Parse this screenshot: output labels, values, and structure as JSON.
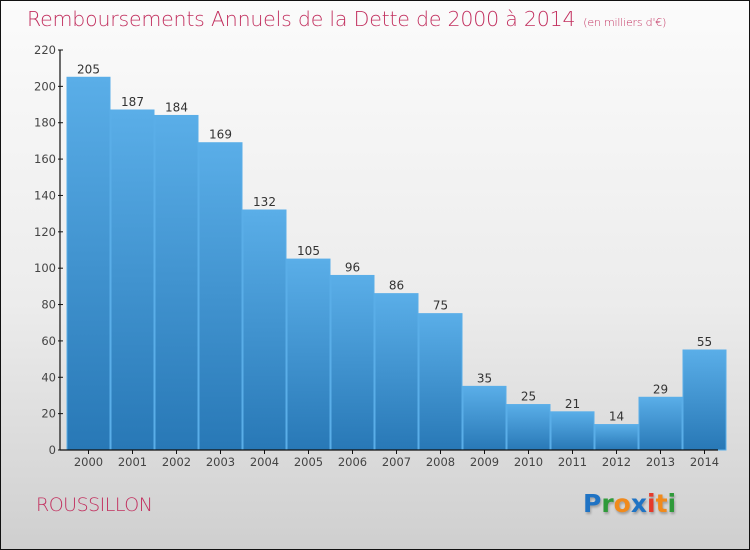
{
  "header": {
    "title": "Remboursements Annuels de la Dette de 2000 à 2014",
    "subtitle": "(en milliers d'€)"
  },
  "footer": {
    "place": "ROUSSILLON",
    "logo": {
      "letters": [
        {
          "char": "P",
          "color": "#1f73c4"
        },
        {
          "char": "r",
          "color": "#2f9a3a"
        },
        {
          "char": "o",
          "color": "#f08a1c"
        },
        {
          "char": "x",
          "color": "#1f73c4"
        },
        {
          "char": "i",
          "color": "#e53a2a"
        },
        {
          "char": "t",
          "color": "#f08a1c"
        },
        {
          "char": "i",
          "color": "#2f9a3a"
        }
      ]
    }
  },
  "colors": {
    "bar_top": "#5aaee8",
    "bar_bottom": "#2878b6",
    "title": "#c2305f",
    "axis": "#111111"
  },
  "chart_data": {
    "type": "bar",
    "title": "Remboursements Annuels de la Dette de 2000 à 2014",
    "subtitle": "(en milliers d'€)",
    "xlabel": "",
    "ylabel": "",
    "categories": [
      "2000",
      "2001",
      "2002",
      "2003",
      "2004",
      "2005",
      "2006",
      "2007",
      "2008",
      "2009",
      "2010",
      "2011",
      "2012",
      "2013",
      "2014"
    ],
    "values": [
      205,
      187,
      184,
      169,
      132,
      105,
      96,
      86,
      75,
      35,
      25,
      21,
      14,
      29,
      55
    ],
    "ylim": [
      0,
      220
    ],
    "yticks": [
      0,
      20,
      40,
      60,
      80,
      100,
      120,
      140,
      160,
      180,
      200,
      220
    ],
    "grid": false,
    "legend": "none",
    "data_labels": true
  }
}
